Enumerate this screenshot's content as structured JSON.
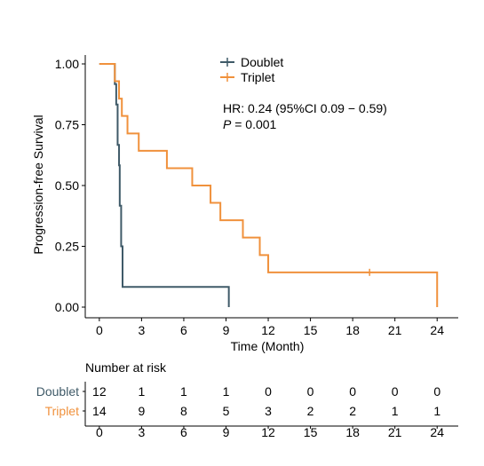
{
  "chart_data": {
    "type": "line",
    "subtype": "kaplan-meier",
    "ylabel": "Progression-free Survival",
    "xlabel": "Time (Month)",
    "xlim": [
      -1,
      25.5
    ],
    "ylim": [
      0,
      1
    ],
    "x_ticks": [
      0,
      3,
      6,
      9,
      12,
      15,
      18,
      21,
      24
    ],
    "y_ticks": [
      0,
      0.25,
      0.5,
      0.75,
      1.0
    ],
    "y_tick_labels": [
      "0.00",
      "0.25",
      "0.50",
      "0.75",
      "1.00"
    ],
    "annotation": {
      "hr_text": "HR: 0.24 (95%CI 0.09 − 0.59)",
      "p_label": "P",
      "p_value_text": " = 0.001"
    },
    "legend": {
      "position": "top-center"
    },
    "series": [
      {
        "name": "Doublet",
        "color": "#3f5a68",
        "steps": [
          [
            0,
            1.0
          ],
          [
            1.1,
            0.917
          ],
          [
            1.2,
            0.833
          ],
          [
            1.3,
            0.667
          ],
          [
            1.4,
            0.583
          ],
          [
            1.45,
            0.417
          ],
          [
            1.55,
            0.25
          ],
          [
            1.65,
            0.083
          ],
          [
            9.2,
            0.083
          ],
          [
            9.2,
            0.0
          ]
        ],
        "censor_points": []
      },
      {
        "name": "Triplet",
        "color": "#f0913c",
        "steps": [
          [
            0,
            1.0
          ],
          [
            1.1,
            0.929
          ],
          [
            1.4,
            0.857
          ],
          [
            1.6,
            0.786
          ],
          [
            2.0,
            0.714
          ],
          [
            2.8,
            0.643
          ],
          [
            4.8,
            0.571
          ],
          [
            6.6,
            0.5
          ],
          [
            7.9,
            0.429
          ],
          [
            8.6,
            0.357
          ],
          [
            10.2,
            0.286
          ],
          [
            11.4,
            0.214
          ],
          [
            12.0,
            0.143
          ],
          [
            24.0,
            0.143
          ],
          [
            24.0,
            0.0
          ]
        ],
        "censor_points": [
          [
            19.2,
            0.143
          ]
        ]
      }
    ],
    "risk_table": {
      "title": "Number at risk",
      "times": [
        0,
        3,
        6,
        9,
        12,
        15,
        18,
        21,
        24
      ],
      "rows": [
        {
          "name": "Doublet",
          "color": "#3f5a68",
          "values": [
            12,
            1,
            1,
            1,
            0,
            0,
            0,
            0,
            0
          ]
        },
        {
          "name": "Triplet",
          "color": "#f0913c",
          "values": [
            14,
            9,
            8,
            5,
            3,
            2,
            2,
            1,
            1
          ]
        }
      ]
    }
  }
}
